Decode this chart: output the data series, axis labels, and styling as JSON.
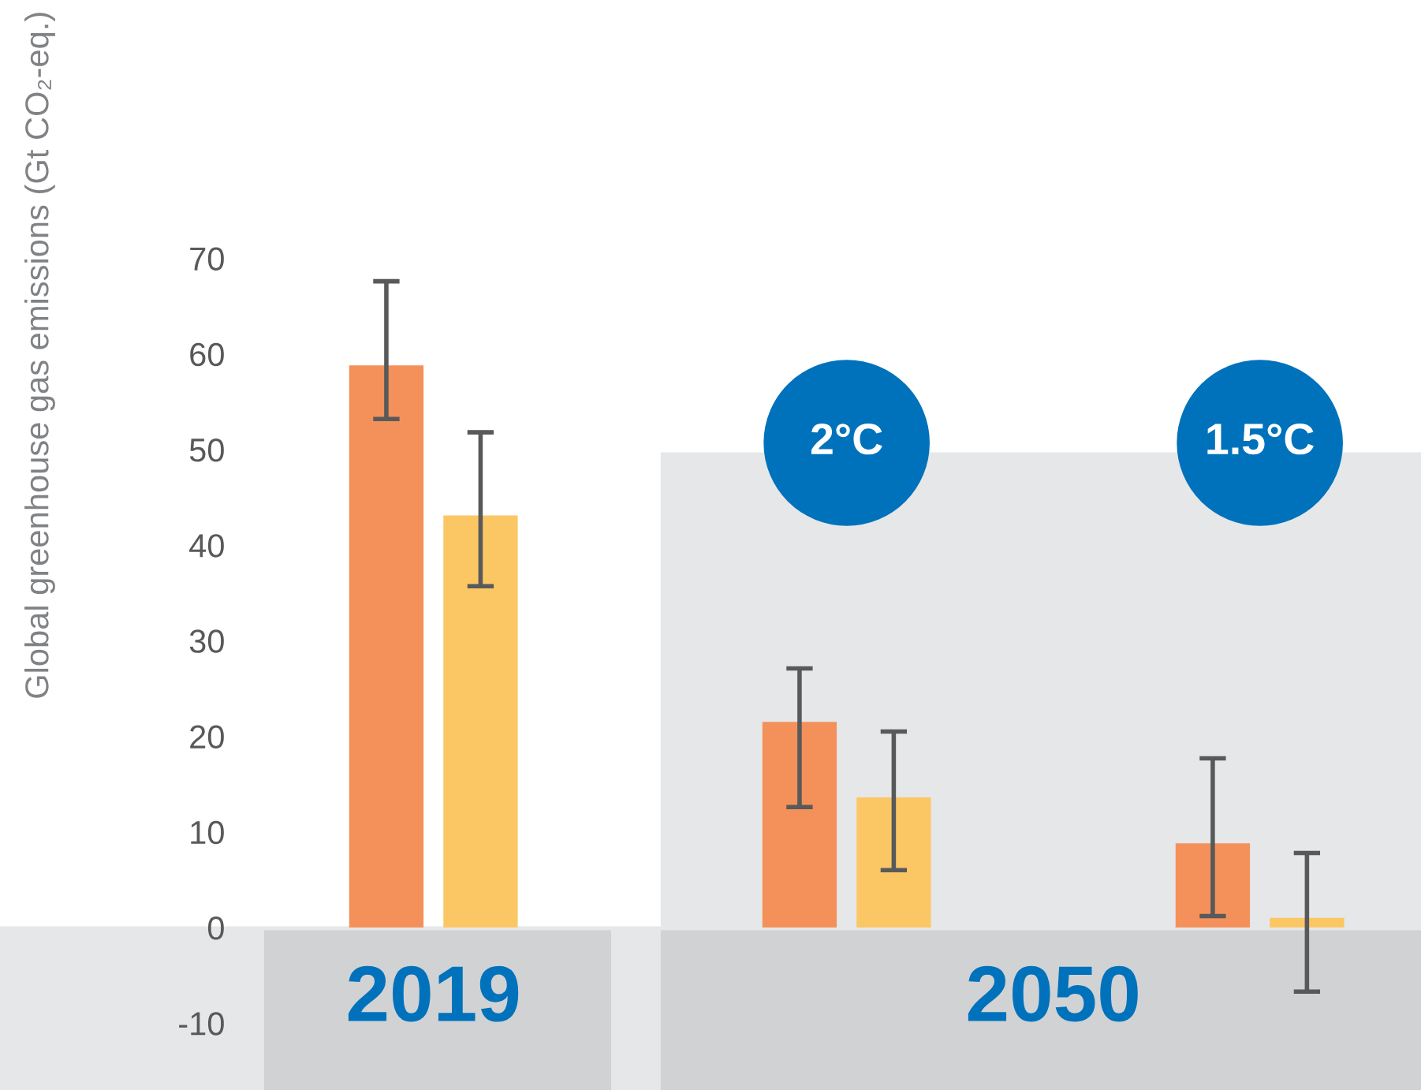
{
  "chart_data": {
    "type": "bar",
    "ylabel": "Global greenhouse gas emissions (Gt CO₂-eq.)",
    "categories": [
      "2019",
      "2°C",
      "1.5°C"
    ],
    "series": [
      {
        "color": "#f4915a",
        "values": [
          58.8,
          21.5,
          8.8
        ],
        "errors": [
          [
            53.2,
            67.6
          ],
          [
            12.6,
            27.1
          ],
          [
            1.2,
            17.7
          ]
        ]
      },
      {
        "color": "#fbc765",
        "values": [
          43.1,
          13.6,
          1.0
        ],
        "errors": [
          [
            35.7,
            51.8
          ],
          [
            6.0,
            20.5
          ],
          [
            -6.7,
            7.8
          ]
        ]
      }
    ],
    "annotations": [
      "2050"
    ],
    "bands": [
      {
        "axis": "y",
        "from": 0,
        "to": 49.7,
        "color": "#e6e7e9"
      }
    ],
    "ylim": [
      -17,
      70
    ],
    "yticks": [
      -10,
      0,
      10,
      20,
      30,
      40,
      50,
      60,
      70
    ],
    "grid": false,
    "legend": false
  }
}
